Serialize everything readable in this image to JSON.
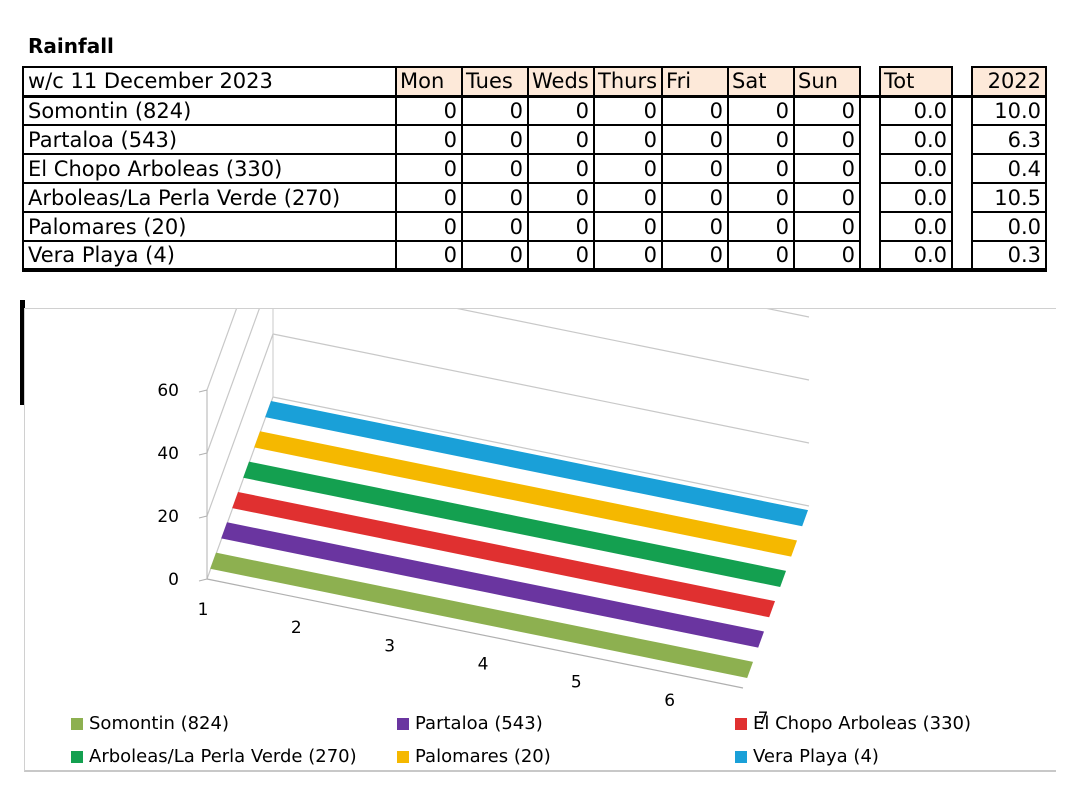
{
  "title": "Rainfall",
  "table": {
    "week_label": "w/c 11 December 2023",
    "day_headers": [
      "Mon",
      "Tues",
      "Weds",
      "Thurs",
      "Fri",
      "Sat",
      "Sun"
    ],
    "tot_header": "Tot",
    "year_header": "2022",
    "rows": [
      {
        "name": "Somontin (824)",
        "days": [
          "0",
          "0",
          "0",
          "0",
          "0",
          "0",
          "0"
        ],
        "tot": "0.0",
        "year": "10.0"
      },
      {
        "name": "Partaloa (543)",
        "days": [
          "0",
          "0",
          "0",
          "0",
          "0",
          "0",
          "0"
        ],
        "tot": "0.0",
        "year": "6.3"
      },
      {
        "name": "El Chopo Arboleas (330)",
        "days": [
          "0",
          "0",
          "0",
          "0",
          "0",
          "0",
          "0"
        ],
        "tot": "0.0",
        "year": "0.4"
      },
      {
        "name": "Arboleas/La Perla Verde (270)",
        "days": [
          "0",
          "0",
          "0",
          "0",
          "0",
          "0",
          "0"
        ],
        "tot": "0.0",
        "year": "10.5"
      },
      {
        "name": "Palomares (20)",
        "days": [
          "0",
          "0",
          "0",
          "0",
          "0",
          "0",
          "0"
        ],
        "tot": "0.0",
        "year": "0.0"
      },
      {
        "name": "Vera Playa (4)",
        "days": [
          "0",
          "0",
          "0",
          "0",
          "0",
          "0",
          "0"
        ],
        "tot": "0.0",
        "year": "0.3"
      }
    ]
  },
  "chart_data": {
    "type": "area",
    "style": "3d",
    "x": [
      1,
      2,
      3,
      4,
      5,
      6,
      7
    ],
    "x_tick_labels": [
      "1",
      "2",
      "3",
      "4",
      "5",
      "6",
      "7"
    ],
    "y_tick_labels": [
      "0",
      "20",
      "40",
      "60"
    ],
    "ylim": [
      0,
      60
    ],
    "grid": true,
    "legend_position": "bottom",
    "series": [
      {
        "name": "Somontin (824)",
        "color": "#8db050",
        "values": [
          0,
          0,
          0,
          0,
          0,
          0,
          0
        ]
      },
      {
        "name": "Partaloa (543)",
        "color": "#6a35a0",
        "values": [
          0,
          0,
          0,
          0,
          0,
          0,
          0
        ]
      },
      {
        "name": "El Chopo Arboleas (330)",
        "color": "#e03030",
        "values": [
          0,
          0,
          0,
          0,
          0,
          0,
          0
        ]
      },
      {
        "name": "Arboleas/La Perla Verde (270)",
        "color": "#14a050",
        "values": [
          0,
          0,
          0,
          0,
          0,
          0,
          0
        ]
      },
      {
        "name": "Palomares (20)",
        "color": "#f5b800",
        "values": [
          0,
          0,
          0,
          0,
          0,
          0,
          0
        ]
      },
      {
        "name": "Vera Playa (4)",
        "color": "#1aa0d8",
        "values": [
          0,
          0,
          0,
          0,
          0,
          0,
          0
        ]
      }
    ]
  }
}
